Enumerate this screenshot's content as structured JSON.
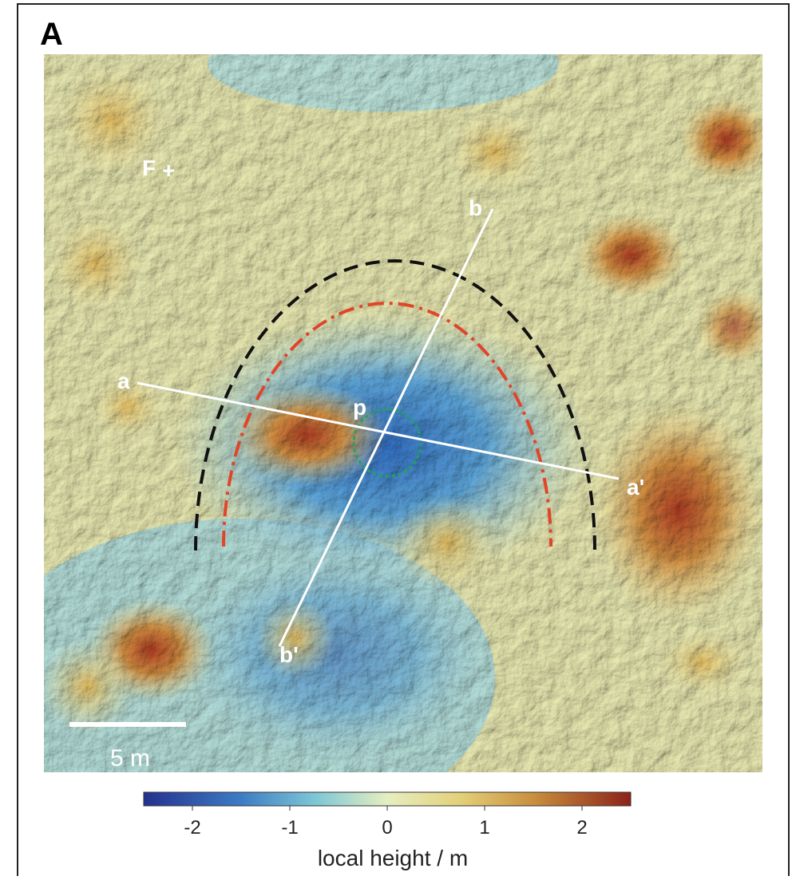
{
  "panel_label": "A",
  "map": {
    "labels": [
      "F",
      "+",
      "a",
      "a'",
      "b",
      "b'",
      "p"
    ]
  },
  "scale_bar": {
    "label": "5 m"
  },
  "colorbar": {
    "label": "local height / m",
    "lim": [
      -2.5,
      2.5
    ],
    "ticks": [
      -2,
      -1,
      0,
      1,
      2
    ]
  }
}
